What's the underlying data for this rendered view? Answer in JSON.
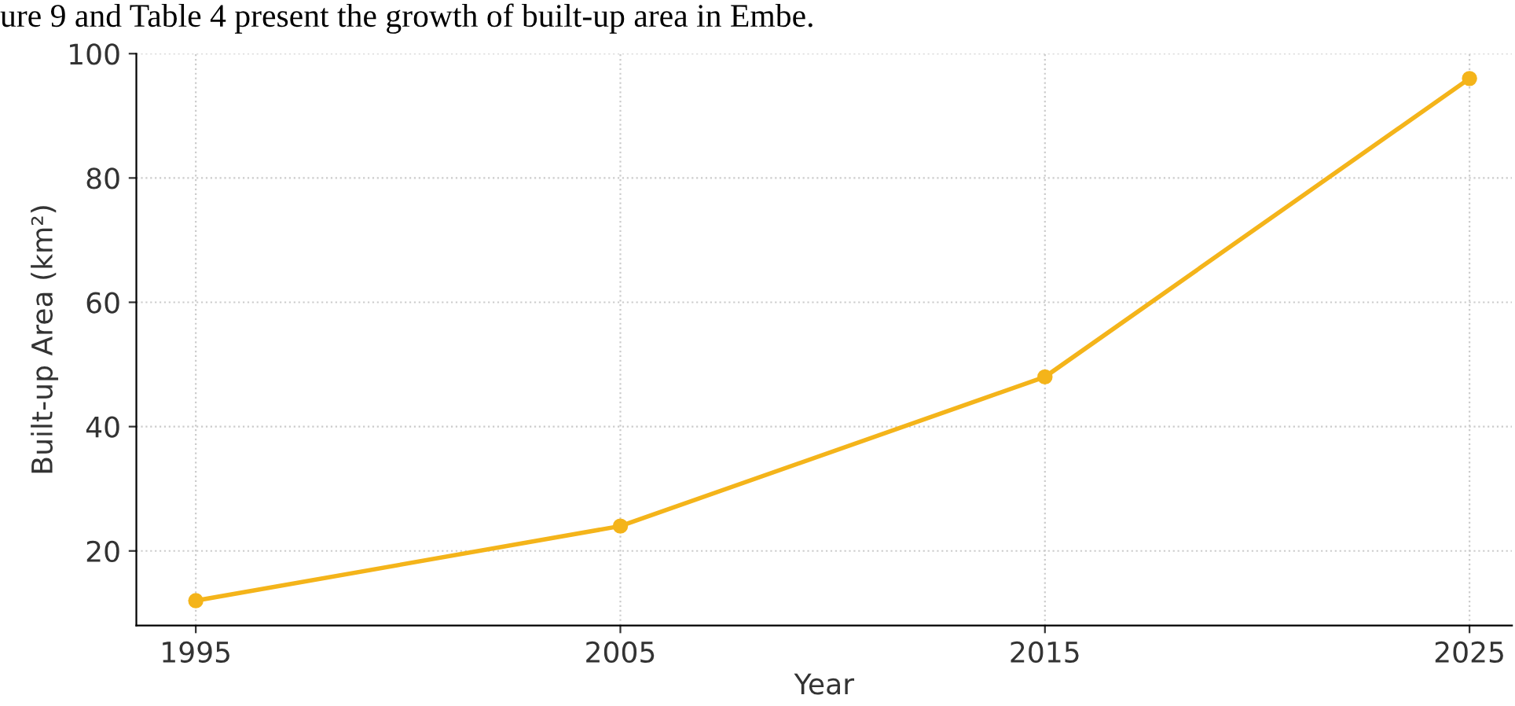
{
  "chart_data": {
    "type": "line",
    "xlabel": "Year",
    "ylabel": "Built-up Area (km²)",
    "annotations": [
      "ure 9 and Table 4 present the growth of built-up area in Embe."
    ],
    "x": [
      1995,
      2005,
      2015,
      2025
    ],
    "series": [
      {
        "color": "#f4b41a",
        "values": [
          12,
          24,
          48,
          96
        ]
      }
    ],
    "xlim": [
      1993.6,
      2026
    ],
    "xticks": [
      1995,
      2005,
      2015,
      2025
    ],
    "ylim": [
      8,
      100
    ],
    "yticks": [
      20,
      40,
      60,
      80,
      100
    ],
    "grid": true,
    "marker": "circle",
    "line_style": "solid"
  }
}
